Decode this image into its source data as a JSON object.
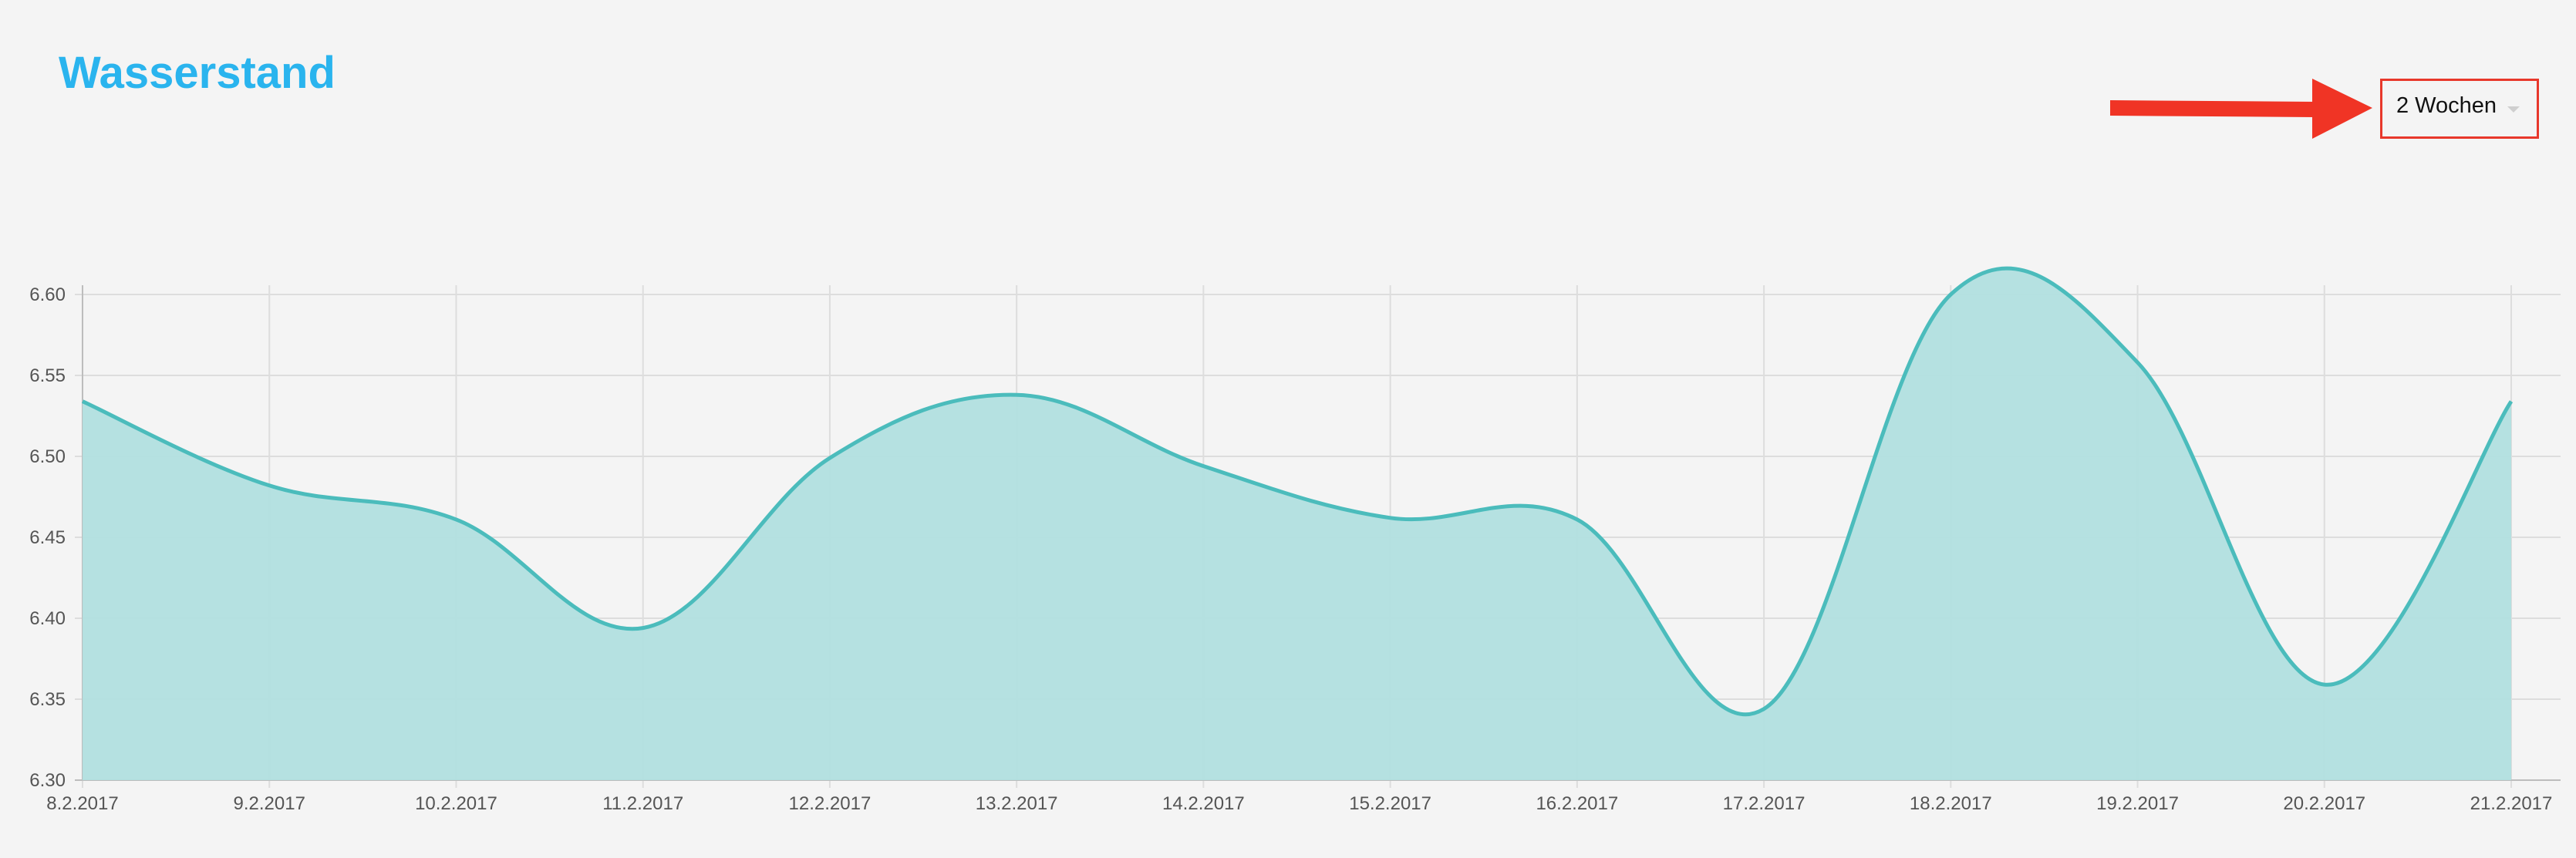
{
  "header": {
    "title": "Wasserstand"
  },
  "range_select": {
    "selected": "2 Wochen"
  },
  "colors": {
    "title": "#2ab4ee",
    "line": "#4bbcbc",
    "fill": "#b1dfdf",
    "annotation": "#f03425",
    "grid": "#dddddd"
  },
  "chart_data": {
    "type": "area",
    "x": [
      "8.2.2017",
      "9.2.2017",
      "10.2.2017",
      "11.2.2017",
      "12.2.2017",
      "13.2.2017",
      "14.2.2017",
      "15.2.2017",
      "16.2.2017",
      "17.2.2017",
      "18.2.2017",
      "19.2.2017",
      "20.2.2017",
      "21.2.2017"
    ],
    "series": [
      {
        "values": [
          6.534,
          6.482,
          6.461,
          6.394,
          6.499,
          6.538,
          6.494,
          6.462,
          6.461,
          6.344,
          6.6,
          6.558,
          6.359,
          6.534
        ]
      }
    ],
    "ylim": [
      6.3,
      6.6
    ],
    "yticks": [
      "6.30",
      "6.35",
      "6.40",
      "6.45",
      "6.50",
      "6.55",
      "6.60"
    ],
    "grid": true,
    "legend": "none"
  }
}
